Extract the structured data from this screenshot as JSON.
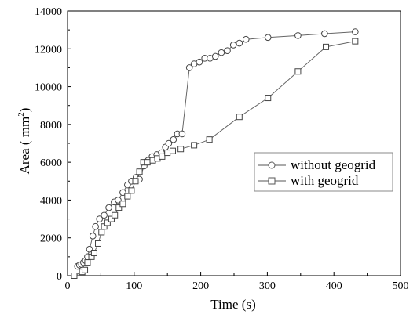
{
  "chart_data": {
    "type": "line",
    "xlabel": "Time (s)",
    "ylabel_main": "Area ( mm",
    "ylabel_sup": "2",
    "ylabel_close": ")",
    "xlim": [
      0,
      500
    ],
    "ylim": [
      0,
      14000
    ],
    "xticks": [
      0,
      100,
      200,
      300,
      400,
      500
    ],
    "yticks": [
      0,
      2000,
      4000,
      6000,
      8000,
      10000,
      12000,
      14000
    ],
    "grid": false,
    "legend_position": "right-center",
    "series": [
      {
        "name": "without geogrid",
        "marker": "circle",
        "color": "#000000",
        "x": [
          15,
          18,
          21,
          24,
          27,
          30,
          33,
          38,
          42,
          48,
          55,
          62,
          70,
          76,
          83,
          90,
          96,
          103,
          108,
          115,
          121,
          127,
          134,
          141,
          147,
          152,
          159,
          165,
          172,
          183,
          190,
          198,
          206,
          214,
          222,
          231,
          240,
          249,
          258,
          268,
          301,
          346,
          386,
          432
        ],
        "y": [
          500,
          560,
          600,
          700,
          800,
          1000,
          1400,
          2100,
          2600,
          3000,
          3200,
          3600,
          3900,
          4000,
          4400,
          4800,
          5000,
          5200,
          5100,
          5800,
          6100,
          6300,
          6400,
          6500,
          6800,
          7000,
          7200,
          7500,
          7500,
          11000,
          11200,
          11300,
          11500,
          11500,
          11600,
          11800,
          11900,
          12200,
          12300,
          12500,
          12600,
          12700,
          12800,
          12900
        ]
      },
      {
        "name": "with geogrid",
        "marker": "square",
        "color": "#000000",
        "x": [
          10,
          22,
          26,
          30,
          36,
          40,
          46,
          51,
          55,
          60,
          66,
          71,
          77,
          83,
          90,
          96,
          102,
          108,
          114,
          120,
          128,
          135,
          142,
          150,
          158,
          170,
          190,
          213,
          258,
          301,
          346,
          388,
          432
        ],
        "y": [
          0,
          200,
          300,
          700,
          1000,
          1200,
          1700,
          2300,
          2600,
          2800,
          3000,
          3200,
          3600,
          3800,
          4200,
          4500,
          5000,
          5500,
          6000,
          6000,
          6100,
          6200,
          6300,
          6500,
          6600,
          6700,
          6900,
          7200,
          8400,
          9400,
          10800,
          12100,
          12400
        ]
      }
    ]
  }
}
